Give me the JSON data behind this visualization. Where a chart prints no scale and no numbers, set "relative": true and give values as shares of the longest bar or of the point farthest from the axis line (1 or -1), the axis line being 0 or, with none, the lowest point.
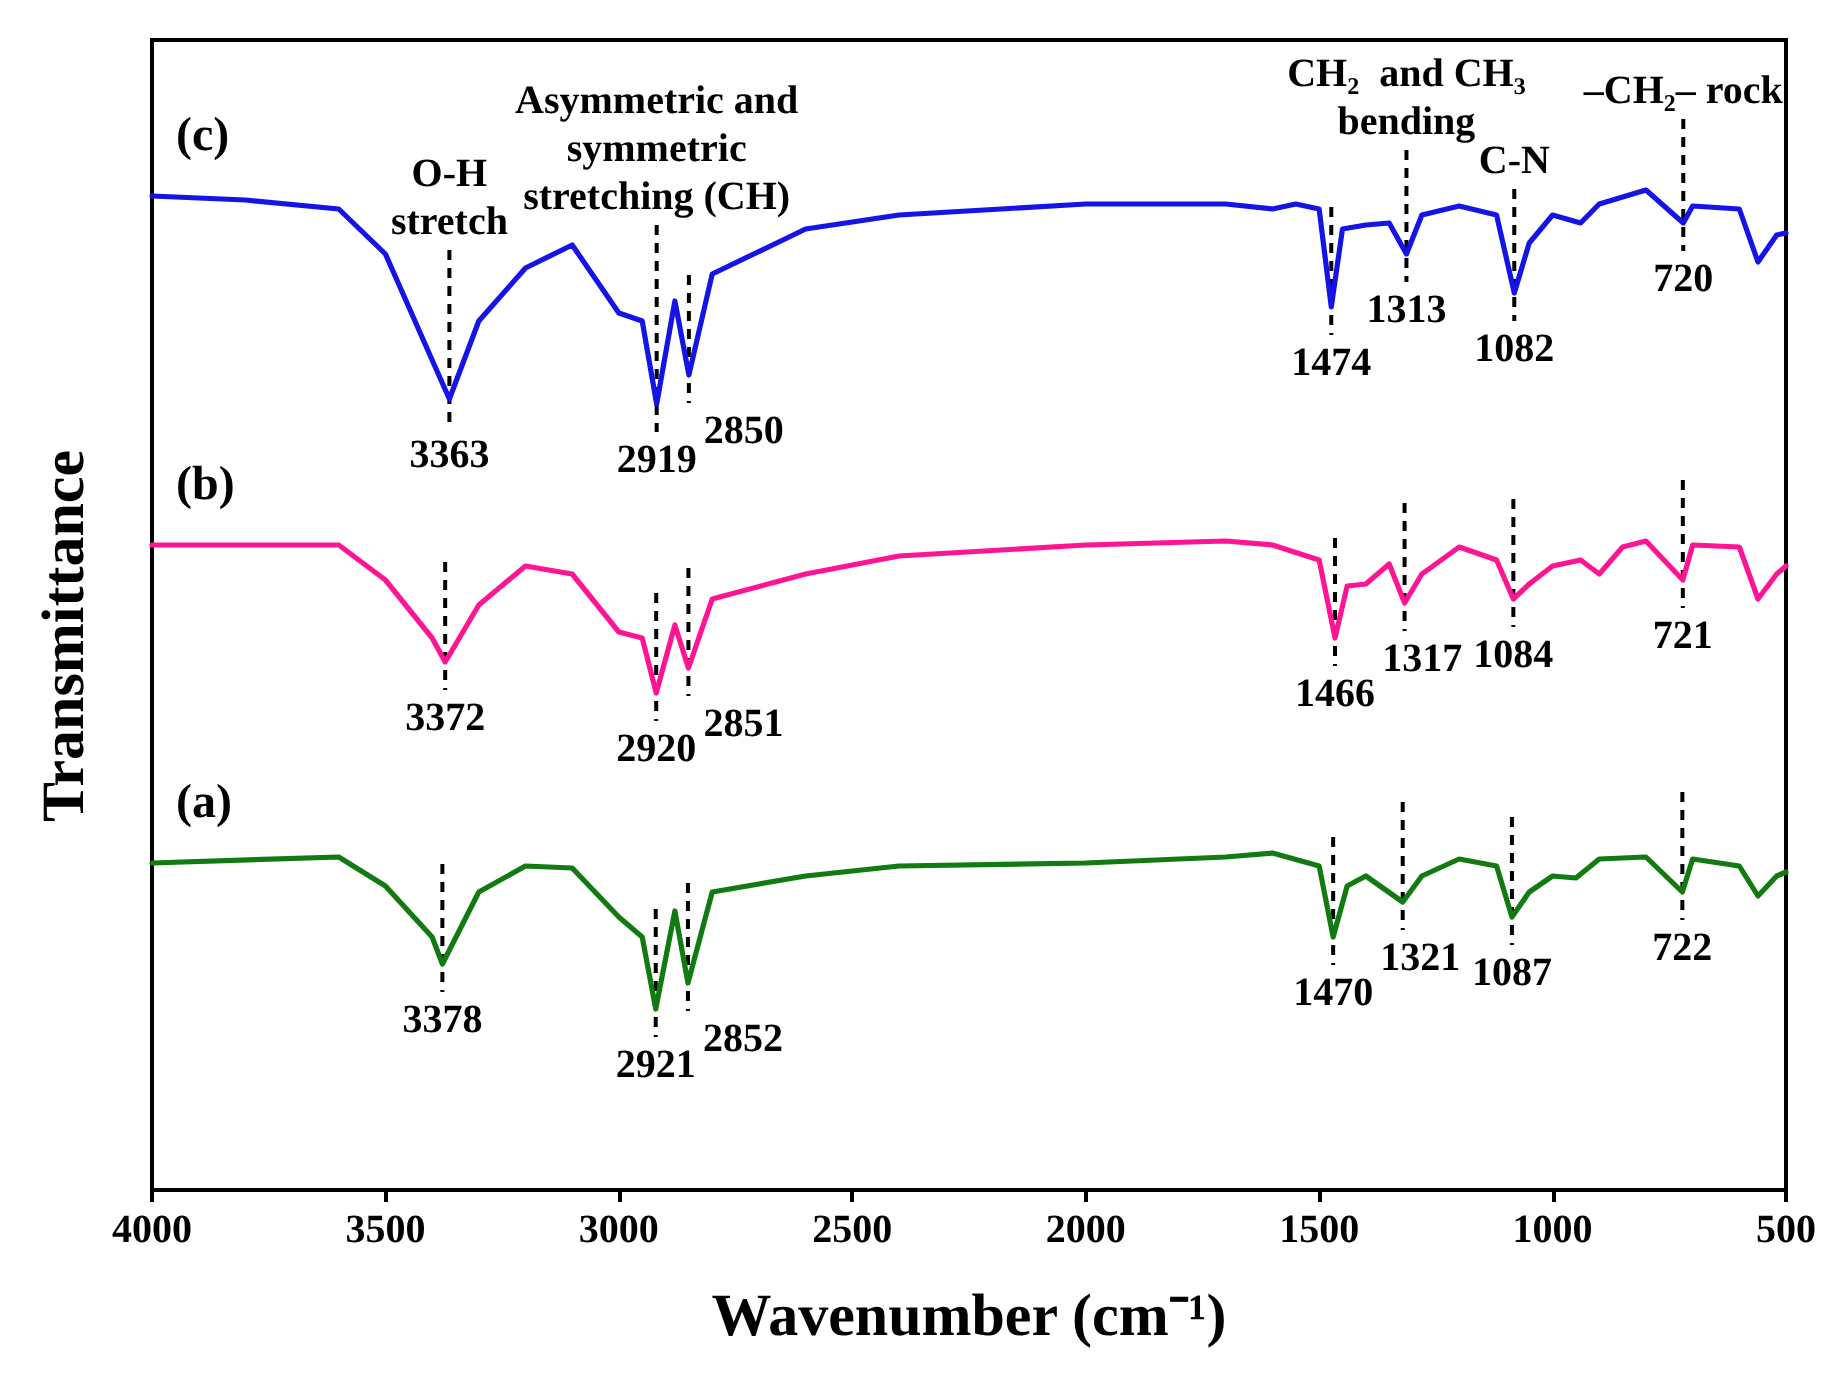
{
  "chart_data": {
    "type": "line",
    "relative": true,
    "xlabel": "Wavenumber (cm⁻¹)",
    "ylabel": "Transmittance",
    "xlim": [
      4000,
      500
    ],
    "xticks": [
      4000,
      3500,
      3000,
      2500,
      2000,
      1500,
      1000,
      500
    ],
    "grid": false,
    "legend": false,
    "marker": "none",
    "series": [
      {
        "name": "(c)",
        "color": "#1414e6",
        "x": [
          4000,
          3800,
          3600,
          3500,
          3400,
          3363,
          3300,
          3200,
          3100,
          3000,
          2950,
          2919,
          2880,
          2850,
          2800,
          2600,
          2400,
          2000,
          1700,
          1600,
          1550,
          1500,
          1474,
          1450,
          1400,
          1350,
          1313,
          1280,
          1200,
          1120,
          1082,
          1050,
          1000,
          940,
          900,
          800,
          720,
          700,
          600,
          560,
          520,
          500
        ],
        "values": [
          0.994,
          0.99,
          0.981,
          0.936,
          0.83,
          0.791,
          0.869,
          0.922,
          0.945,
          0.877,
          0.869,
          0.786,
          0.889,
          0.815,
          0.916,
          0.961,
          0.975,
          0.986,
          0.986,
          0.981,
          0.986,
          0.981,
          0.883,
          0.961,
          0.965,
          0.967,
          0.936,
          0.975,
          0.984,
          0.975,
          0.897,
          0.947,
          0.975,
          0.967,
          0.986,
          1.0,
          0.967,
          0.984,
          0.981,
          0.928,
          0.955,
          0.957
        ]
      },
      {
        "name": "(b)",
        "color": "#ff1493",
        "x": [
          4000,
          3600,
          3500,
          3400,
          3372,
          3300,
          3200,
          3100,
          3000,
          2950,
          2920,
          2880,
          2851,
          2800,
          2600,
          2400,
          2000,
          1700,
          1600,
          1500,
          1466,
          1440,
          1400,
          1350,
          1317,
          1280,
          1200,
          1120,
          1084,
          1050,
          1000,
          940,
          900,
          850,
          800,
          721,
          700,
          600,
          560,
          520,
          500
        ],
        "values": [
          0.645,
          0.645,
          0.61,
          0.552,
          0.528,
          0.585,
          0.624,
          0.616,
          0.558,
          0.552,
          0.497,
          0.565,
          0.522,
          0.591,
          0.616,
          0.634,
          0.645,
          0.649,
          0.645,
          0.63,
          0.552,
          0.604,
          0.606,
          0.626,
          0.587,
          0.616,
          0.643,
          0.63,
          0.591,
          0.606,
          0.624,
          0.63,
          0.616,
          0.643,
          0.649,
          0.61,
          0.645,
          0.643,
          0.591,
          0.616,
          0.624
        ]
      },
      {
        "name": "(a)",
        "color": "#117a11",
        "x": [
          4000,
          3600,
          3500,
          3400,
          3378,
          3300,
          3200,
          3100,
          3000,
          2950,
          2921,
          2880,
          2852,
          2800,
          2600,
          2400,
          2000,
          1700,
          1600,
          1500,
          1470,
          1440,
          1400,
          1321,
          1280,
          1200,
          1120,
          1087,
          1050,
          1000,
          950,
          900,
          800,
          722,
          700,
          600,
          560,
          520,
          500
        ],
        "values": [
          0.327,
          0.333,
          0.304,
          0.253,
          0.226,
          0.298,
          0.324,
          0.322,
          0.273,
          0.253,
          0.181,
          0.279,
          0.207,
          0.298,
          0.314,
          0.324,
          0.327,
          0.333,
          0.337,
          0.324,
          0.253,
          0.304,
          0.314,
          0.288,
          0.314,
          0.331,
          0.324,
          0.273,
          0.298,
          0.314,
          0.312,
          0.331,
          0.333,
          0.298,
          0.331,
          0.324,
          0.294,
          0.314,
          0.318
        ]
      }
    ],
    "annotations": [
      {
        "text": "3363",
        "x": 3363,
        "y": 0.791
      },
      {
        "text": "2919",
        "x": 2919,
        "y": 0.786
      },
      {
        "text": "2850",
        "x": 2850,
        "y": 0.815
      },
      {
        "text": "1474",
        "x": 1474,
        "y": 0.883
      },
      {
        "text": "1313",
        "x": 1313,
        "y": 0.936
      },
      {
        "text": "1082",
        "x": 1082,
        "y": 0.897
      },
      {
        "text": "720",
        "x": 720,
        "y": 0.967
      },
      {
        "text": "3372",
        "x": 3372,
        "y": 0.528
      },
      {
        "text": "2920",
        "x": 2920,
        "y": 0.497
      },
      {
        "text": "2851",
        "x": 2851,
        "y": 0.522
      },
      {
        "text": "1466",
        "x": 1466,
        "y": 0.552
      },
      {
        "text": "1317",
        "x": 1317,
        "y": 0.587
      },
      {
        "text": "1084",
        "x": 1084,
        "y": 0.591
      },
      {
        "text": "721",
        "x": 721,
        "y": 0.61
      },
      {
        "text": "3378",
        "x": 3378,
        "y": 0.226
      },
      {
        "text": "2921",
        "x": 2921,
        "y": 0.181
      },
      {
        "text": "2852",
        "x": 2852,
        "y": 0.207
      },
      {
        "text": "1470",
        "x": 1470,
        "y": 0.253
      },
      {
        "text": "1321",
        "x": 1321,
        "y": 0.288
      },
      {
        "text": "1087",
        "x": 1087,
        "y": 0.273
      },
      {
        "text": "722",
        "x": 722,
        "y": 0.298
      },
      {
        "text": "O-H\nstretch",
        "x": 3363
      },
      {
        "text": "Asymmetric and\nsymmetric\nstretching (CH)",
        "x": 2919
      },
      {
        "text": "CH₂  and CH₃\nbending",
        "x": 1313
      },
      {
        "text": "C-N",
        "x": 1082
      },
      {
        "text": "–CH₂– rock",
        "x": 720
      }
    ]
  }
}
